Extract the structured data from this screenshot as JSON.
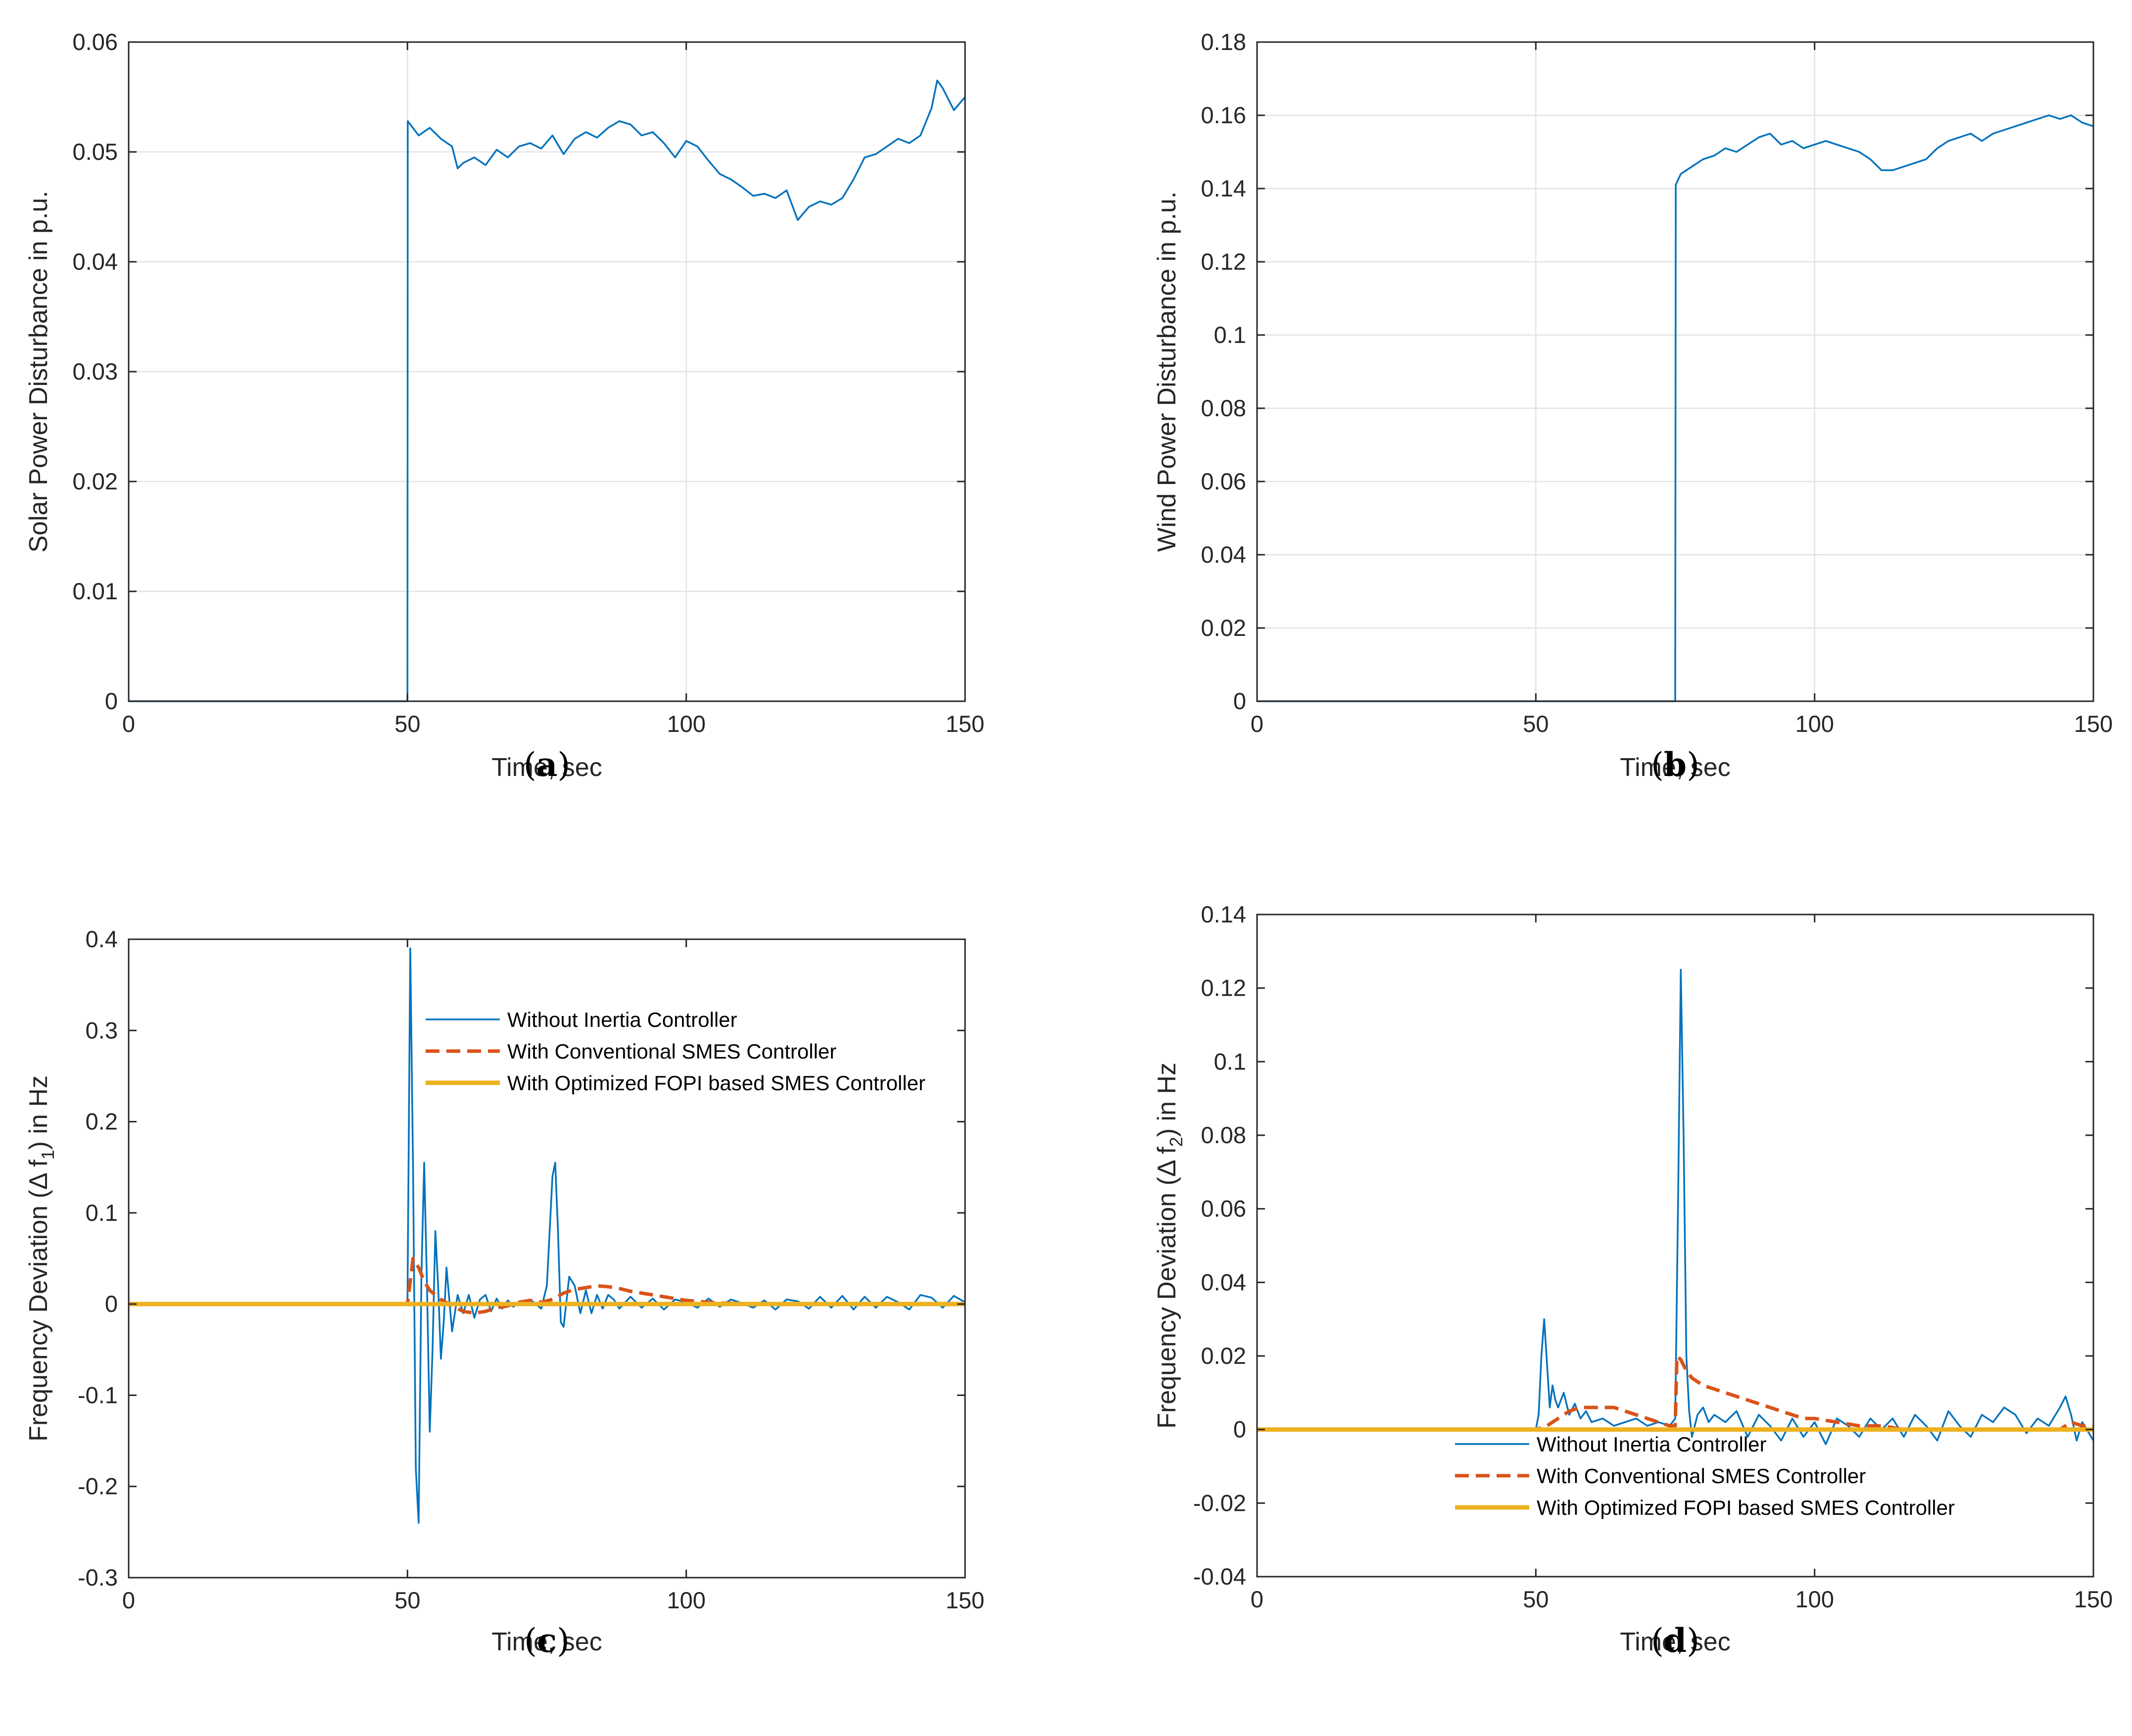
{
  "chart_data": [
    {
      "type": "line",
      "caption": "(a)",
      "caption_letter": "a",
      "xlabel": "Time, sec",
      "ylabel": "Solar Power Disturbance in p.u.",
      "xlim": [
        0,
        150
      ],
      "ylim": [
        0,
        0.06
      ],
      "xticks": [
        0,
        50,
        100,
        150
      ],
      "xtick_labels": [
        "0",
        "50",
        "100",
        "150"
      ],
      "yticks": [
        0,
        0.01,
        0.02,
        0.03,
        0.04,
        0.05,
        0.06
      ],
      "ytick_labels": [
        "0",
        "0.01",
        "0.02",
        "0.03",
        "0.04",
        "0.05",
        "0.06"
      ],
      "grid": true,
      "series": [
        {
          "name": "Solar Power Disturbance",
          "color": "#0072BD",
          "style": "solid",
          "x": [
            0,
            49.9,
            50,
            50.05,
            52,
            54,
            56,
            58,
            59,
            60,
            62,
            64,
            66,
            68,
            70,
            72,
            74,
            76,
            78,
            80,
            82,
            84,
            86,
            88,
            90,
            92,
            94,
            96,
            98,
            100,
            102,
            104,
            106,
            108,
            110,
            112,
            114,
            116,
            118,
            120,
            122,
            124,
            126,
            128,
            130,
            132,
            134,
            136,
            138,
            140,
            142,
            144,
            145,
            146,
            148,
            150
          ],
          "y": [
            0,
            0,
            0,
            0.0528,
            0.0515,
            0.0522,
            0.0512,
            0.0505,
            0.0485,
            0.049,
            0.0495,
            0.0488,
            0.0502,
            0.0495,
            0.0505,
            0.0508,
            0.0503,
            0.0515,
            0.0498,
            0.0512,
            0.0518,
            0.0513,
            0.0522,
            0.0528,
            0.0525,
            0.0515,
            0.0518,
            0.0508,
            0.0495,
            0.051,
            0.0505,
            0.0492,
            0.048,
            0.0475,
            0.0468,
            0.046,
            0.0462,
            0.0458,
            0.0465,
            0.0438,
            0.045,
            0.0455,
            0.0452,
            0.0458,
            0.0475,
            0.0495,
            0.0498,
            0.0505,
            0.0512,
            0.0508,
            0.0515,
            0.054,
            0.0565,
            0.0558,
            0.0538,
            0.055
          ]
        }
      ]
    },
    {
      "type": "line",
      "caption": "(b)",
      "caption_letter": "b",
      "xlabel": "Time, sec",
      "ylabel": "Wind Power Disturbance in p.u.",
      "xlim": [
        0,
        150
      ],
      "ylim": [
        0,
        0.18
      ],
      "xticks": [
        0,
        50,
        100,
        150
      ],
      "xtick_labels": [
        "0",
        "50",
        "100",
        "150"
      ],
      "yticks": [
        0,
        0.02,
        0.04,
        0.06,
        0.08,
        0.1,
        0.12,
        0.14,
        0.16,
        0.18
      ],
      "ytick_labels": [
        "0",
        "0.02",
        "0.04",
        "0.06",
        "0.08",
        "0.1",
        "0.12",
        "0.14",
        "0.16",
        "0.18"
      ],
      "grid": true,
      "series": [
        {
          "name": "Wind Power Disturbance",
          "color": "#0072BD",
          "style": "solid",
          "x": [
            0,
            74.9,
            75,
            75.1,
            76,
            77,
            78,
            80,
            82,
            84,
            86,
            88,
            90,
            92,
            94,
            96,
            98,
            100,
            102,
            104,
            106,
            108,
            110,
            112,
            114,
            116,
            118,
            120,
            122,
            124,
            126,
            128,
            130,
            132,
            134,
            136,
            138,
            140,
            142,
            144,
            146,
            148,
            150
          ],
          "y": [
            0,
            0,
            0,
            0.141,
            0.144,
            0.145,
            0.146,
            0.148,
            0.149,
            0.151,
            0.15,
            0.152,
            0.154,
            0.155,
            0.152,
            0.153,
            0.151,
            0.152,
            0.153,
            0.152,
            0.151,
            0.15,
            0.148,
            0.145,
            0.145,
            0.146,
            0.147,
            0.148,
            0.151,
            0.153,
            0.154,
            0.155,
            0.153,
            0.155,
            0.156,
            0.157,
            0.158,
            0.159,
            0.16,
            0.159,
            0.16,
            0.158,
            0.157
          ]
        }
      ]
    },
    {
      "type": "line",
      "caption": "(c)",
      "caption_letter": "c",
      "xlabel": "Time, sec",
      "ylabel": "Frequency Deviation (Δ f1) in Hz",
      "ylabel_parts": [
        "Frequency Deviation (Δ f",
        "1",
        ") in Hz"
      ],
      "xlim": [
        0,
        150
      ],
      "ylim": [
        -0.3,
        0.4
      ],
      "xticks": [
        0,
        50,
        100,
        150
      ],
      "xtick_labels": [
        "0",
        "50",
        "100",
        "150"
      ],
      "yticks": [
        -0.3,
        -0.2,
        -0.1,
        0,
        0.1,
        0.2,
        0.3,
        0.4
      ],
      "ytick_labels": [
        "-0.3",
        "-0.2",
        "-0.1",
        "0",
        "0.1",
        "0.2",
        "0.3",
        "0.4"
      ],
      "grid": false,
      "legend_position": "upper-middle",
      "series": [
        {
          "name": "Without Inertia Controller",
          "color": "#0072BD",
          "style": "solid",
          "x": [
            0,
            49.9,
            50,
            50.5,
            51,
            51.5,
            52,
            52.5,
            53,
            53.5,
            54,
            54.5,
            55,
            55.5,
            56,
            56.5,
            57,
            58,
            59,
            60,
            61,
            62,
            63,
            64,
            65,
            66,
            67,
            68,
            69,
            70,
            72,
            74,
            75,
            76,
            76.5,
            77,
            77.5,
            78,
            79,
            80,
            81,
            82,
            83,
            84,
            85,
            86,
            87,
            88,
            90,
            92,
            94,
            96,
            98,
            100,
            102,
            104,
            106,
            108,
            110,
            112,
            114,
            116,
            118,
            120,
            122,
            124,
            126,
            128,
            130,
            132,
            134,
            136,
            138,
            140,
            142,
            144,
            146,
            148,
            150
          ],
          "y": [
            0,
            0,
            0,
            0.39,
            0.15,
            -0.18,
            -0.24,
            0.03,
            0.155,
            0.02,
            -0.14,
            -0.05,
            0.08,
            0.02,
            -0.06,
            -0.02,
            0.04,
            -0.03,
            0.01,
            -0.01,
            0.01,
            -0.015,
            0.005,
            0.01,
            -0.008,
            0.006,
            -0.005,
            0.004,
            -0.003,
            0.002,
            0.005,
            -0.005,
            0.02,
            0.14,
            0.155,
            0.08,
            -0.02,
            -0.025,
            0.03,
            0.02,
            -0.01,
            0.015,
            -0.01,
            0.01,
            -0.005,
            0.01,
            0.005,
            -0.005,
            0.008,
            -0.004,
            0.006,
            -0.006,
            0.005,
            0.002,
            -0.004,
            0.006,
            -0.003,
            0.005,
            0.001,
            -0.004,
            0.004,
            -0.006,
            0.005,
            0.003,
            -0.005,
            0.008,
            -0.004,
            0.009,
            -0.006,
            0.008,
            -0.004,
            0.008,
            0.002,
            -0.006,
            0.01,
            0.007,
            -0.004,
            0.009,
            0.002
          ]
        },
        {
          "name": "With Conventional SMES Controller",
          "color": "#D95319",
          "style": "dashed",
          "x": [
            0,
            49.9,
            50,
            51,
            52,
            53,
            54,
            56,
            58,
            60,
            62,
            64,
            66,
            68,
            70,
            72,
            74,
            76,
            78,
            80,
            82,
            84,
            86,
            88,
            90,
            92,
            94,
            96,
            98,
            100,
            102,
            104,
            106,
            108,
            110,
            115,
            120,
            125,
            130,
            135,
            140,
            145,
            150
          ],
          "y": [
            0,
            0,
            0,
            0.05,
            0.04,
            0.025,
            0.015,
            0.005,
            -0.002,
            -0.008,
            -0.01,
            -0.008,
            -0.004,
            -0.002,
            0.002,
            0.004,
            0.002,
            0.005,
            0.012,
            0.016,
            0.018,
            0.02,
            0.019,
            0.017,
            0.014,
            0.012,
            0.01,
            0.008,
            0.006,
            0.004,
            0.003,
            0.002,
            0.001,
            0.001,
            0.0,
            0.0,
            0.0,
            0.0,
            0.0,
            0.0,
            0.0,
            0.0,
            0.0
          ]
        },
        {
          "name": "With Optimized FOPI based SMES Controller",
          "color": "#EDB120",
          "style": "solid-thick",
          "x": [
            0,
            150
          ],
          "y": [
            0,
            0
          ]
        }
      ]
    },
    {
      "type": "line",
      "caption": "(d)",
      "caption_letter": "d",
      "xlabel": "Time, sec",
      "ylabel": "Frequency Deviation (Δ f2) in Hz",
      "ylabel_parts": [
        "Frequency Deviation (Δ f",
        "2",
        ") in Hz"
      ],
      "xlim": [
        0,
        150
      ],
      "ylim": [
        -0.04,
        0.14
      ],
      "xticks": [
        0,
        50,
        100,
        150
      ],
      "xtick_labels": [
        "0",
        "50",
        "100",
        "150"
      ],
      "yticks": [
        -0.04,
        -0.02,
        0,
        0.02,
        0.04,
        0.06,
        0.08,
        0.1,
        0.12,
        0.14
      ],
      "ytick_labels": [
        "-0.04",
        "-0.02",
        "0",
        "0.02",
        "0.04",
        "0.06",
        "0.08",
        "0.1",
        "0.12",
        "0.14"
      ],
      "grid": false,
      "legend_position": "lower-middle",
      "series": [
        {
          "name": "Without Inertia Controller",
          "color": "#0072BD",
          "style": "solid",
          "x": [
            0,
            49.9,
            50,
            50.5,
            51,
            51.5,
            52,
            52.5,
            53,
            53.5,
            54,
            55,
            56,
            57,
            58,
            59,
            60,
            62,
            64,
            66,
            68,
            70,
            72,
            74,
            75,
            75.5,
            76,
            76.5,
            77,
            77.5,
            78,
            79,
            80,
            81,
            82,
            84,
            86,
            88,
            90,
            92,
            94,
            96,
            98,
            100,
            102,
            104,
            106,
            108,
            110,
            112,
            114,
            116,
            118,
            120,
            122,
            124,
            126,
            128,
            130,
            132,
            134,
            136,
            138,
            140,
            142,
            144,
            145,
            146,
            147,
            148,
            150
          ],
          "y": [
            0,
            0,
            0,
            0.004,
            0.02,
            0.03,
            0.018,
            0.006,
            0.012,
            0.008,
            0.006,
            0.01,
            0.004,
            0.007,
            0.003,
            0.005,
            0.002,
            0.003,
            0.001,
            0.002,
            0.003,
            0.001,
            0.002,
            0.001,
            0.003,
            0.06,
            0.125,
            0.08,
            0.02,
            0.005,
            -0.002,
            0.004,
            0.006,
            0.002,
            0.004,
            0.002,
            0.005,
            -0.002,
            0.004,
            0.001,
            -0.003,
            0.003,
            -0.002,
            0.002,
            -0.004,
            0.003,
            0.001,
            -0.002,
            0.003,
            0.0,
            0.003,
            -0.002,
            0.004,
            0.001,
            -0.003,
            0.005,
            0.001,
            -0.002,
            0.004,
            0.002,
            0.006,
            0.004,
            -0.001,
            0.003,
            0.001,
            0.006,
            0.009,
            0.004,
            -0.003,
            0.002,
            -0.003
          ]
        },
        {
          "name": "With Conventional SMES Controller",
          "color": "#D95319",
          "style": "dashed",
          "x": [
            0,
            49.9,
            50,
            52,
            54,
            56,
            58,
            60,
            62,
            64,
            66,
            68,
            70,
            72,
            74,
            75,
            75.3,
            76,
            77,
            78,
            80,
            82,
            84,
            86,
            88,
            90,
            92,
            94,
            96,
            98,
            100,
            104,
            108,
            112,
            116,
            120,
            124,
            128,
            132,
            136,
            140,
            144,
            146,
            148,
            150
          ],
          "y": [
            0,
            0,
            0,
            0.001,
            0.003,
            0.005,
            0.006,
            0.006,
            0.006,
            0.006,
            0.005,
            0.004,
            0.003,
            0.002,
            0.001,
            0.001,
            0.02,
            0.019,
            0.016,
            0.014,
            0.012,
            0.011,
            0.01,
            0.009,
            0.008,
            0.007,
            0.006,
            0.005,
            0.004,
            0.003,
            0.003,
            0.002,
            0.001,
            0.001,
            0.0,
            0.0,
            0.0,
            0.0,
            0.0,
            0.0,
            0.0,
            0.0,
            0.002,
            0.001,
            0.001
          ]
        },
        {
          "name": "With Optimized FOPI based SMES Controller",
          "color": "#EDB120",
          "style": "solid-thick",
          "x": [
            0,
            150
          ],
          "y": [
            0,
            0
          ]
        }
      ]
    }
  ]
}
